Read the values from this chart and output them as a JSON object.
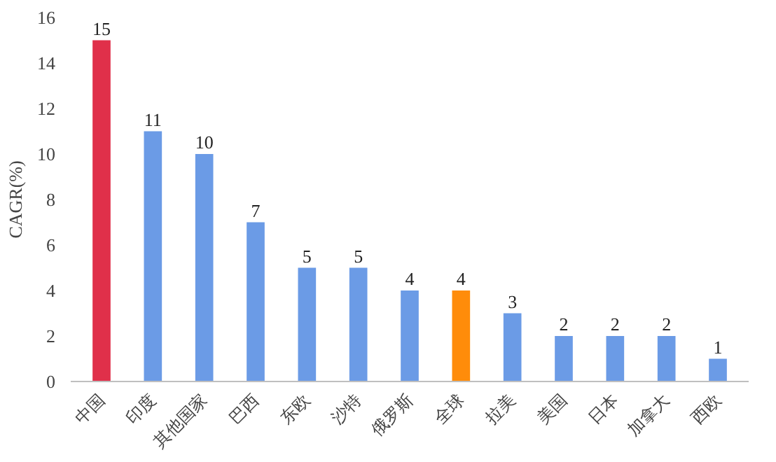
{
  "chart_data": {
    "type": "bar",
    "ylabel": "CAGR(%)",
    "categories": [
      "中国",
      "印度",
      "其他国家",
      "巴西",
      "东欧",
      "沙特",
      "俄罗斯",
      "全球",
      "拉美",
      "美国",
      "日本",
      "加拿大",
      "西欧"
    ],
    "values": [
      15,
      11,
      10,
      7,
      5,
      5,
      4,
      4,
      3,
      2,
      2,
      2,
      1
    ],
    "colors": [
      "#e0304a",
      "#6b9be6",
      "#6b9be6",
      "#6b9be6",
      "#6b9be6",
      "#6b9be6",
      "#6b9be6",
      "#ff8c0a",
      "#6b9be6",
      "#6b9be6",
      "#6b9be6",
      "#6b9be6",
      "#6b9be6"
    ],
    "ylim": [
      0,
      16
    ],
    "yticks": [
      0,
      2,
      4,
      6,
      8,
      10,
      12,
      14,
      16
    ],
    "grid": false,
    "data_labels": true
  }
}
